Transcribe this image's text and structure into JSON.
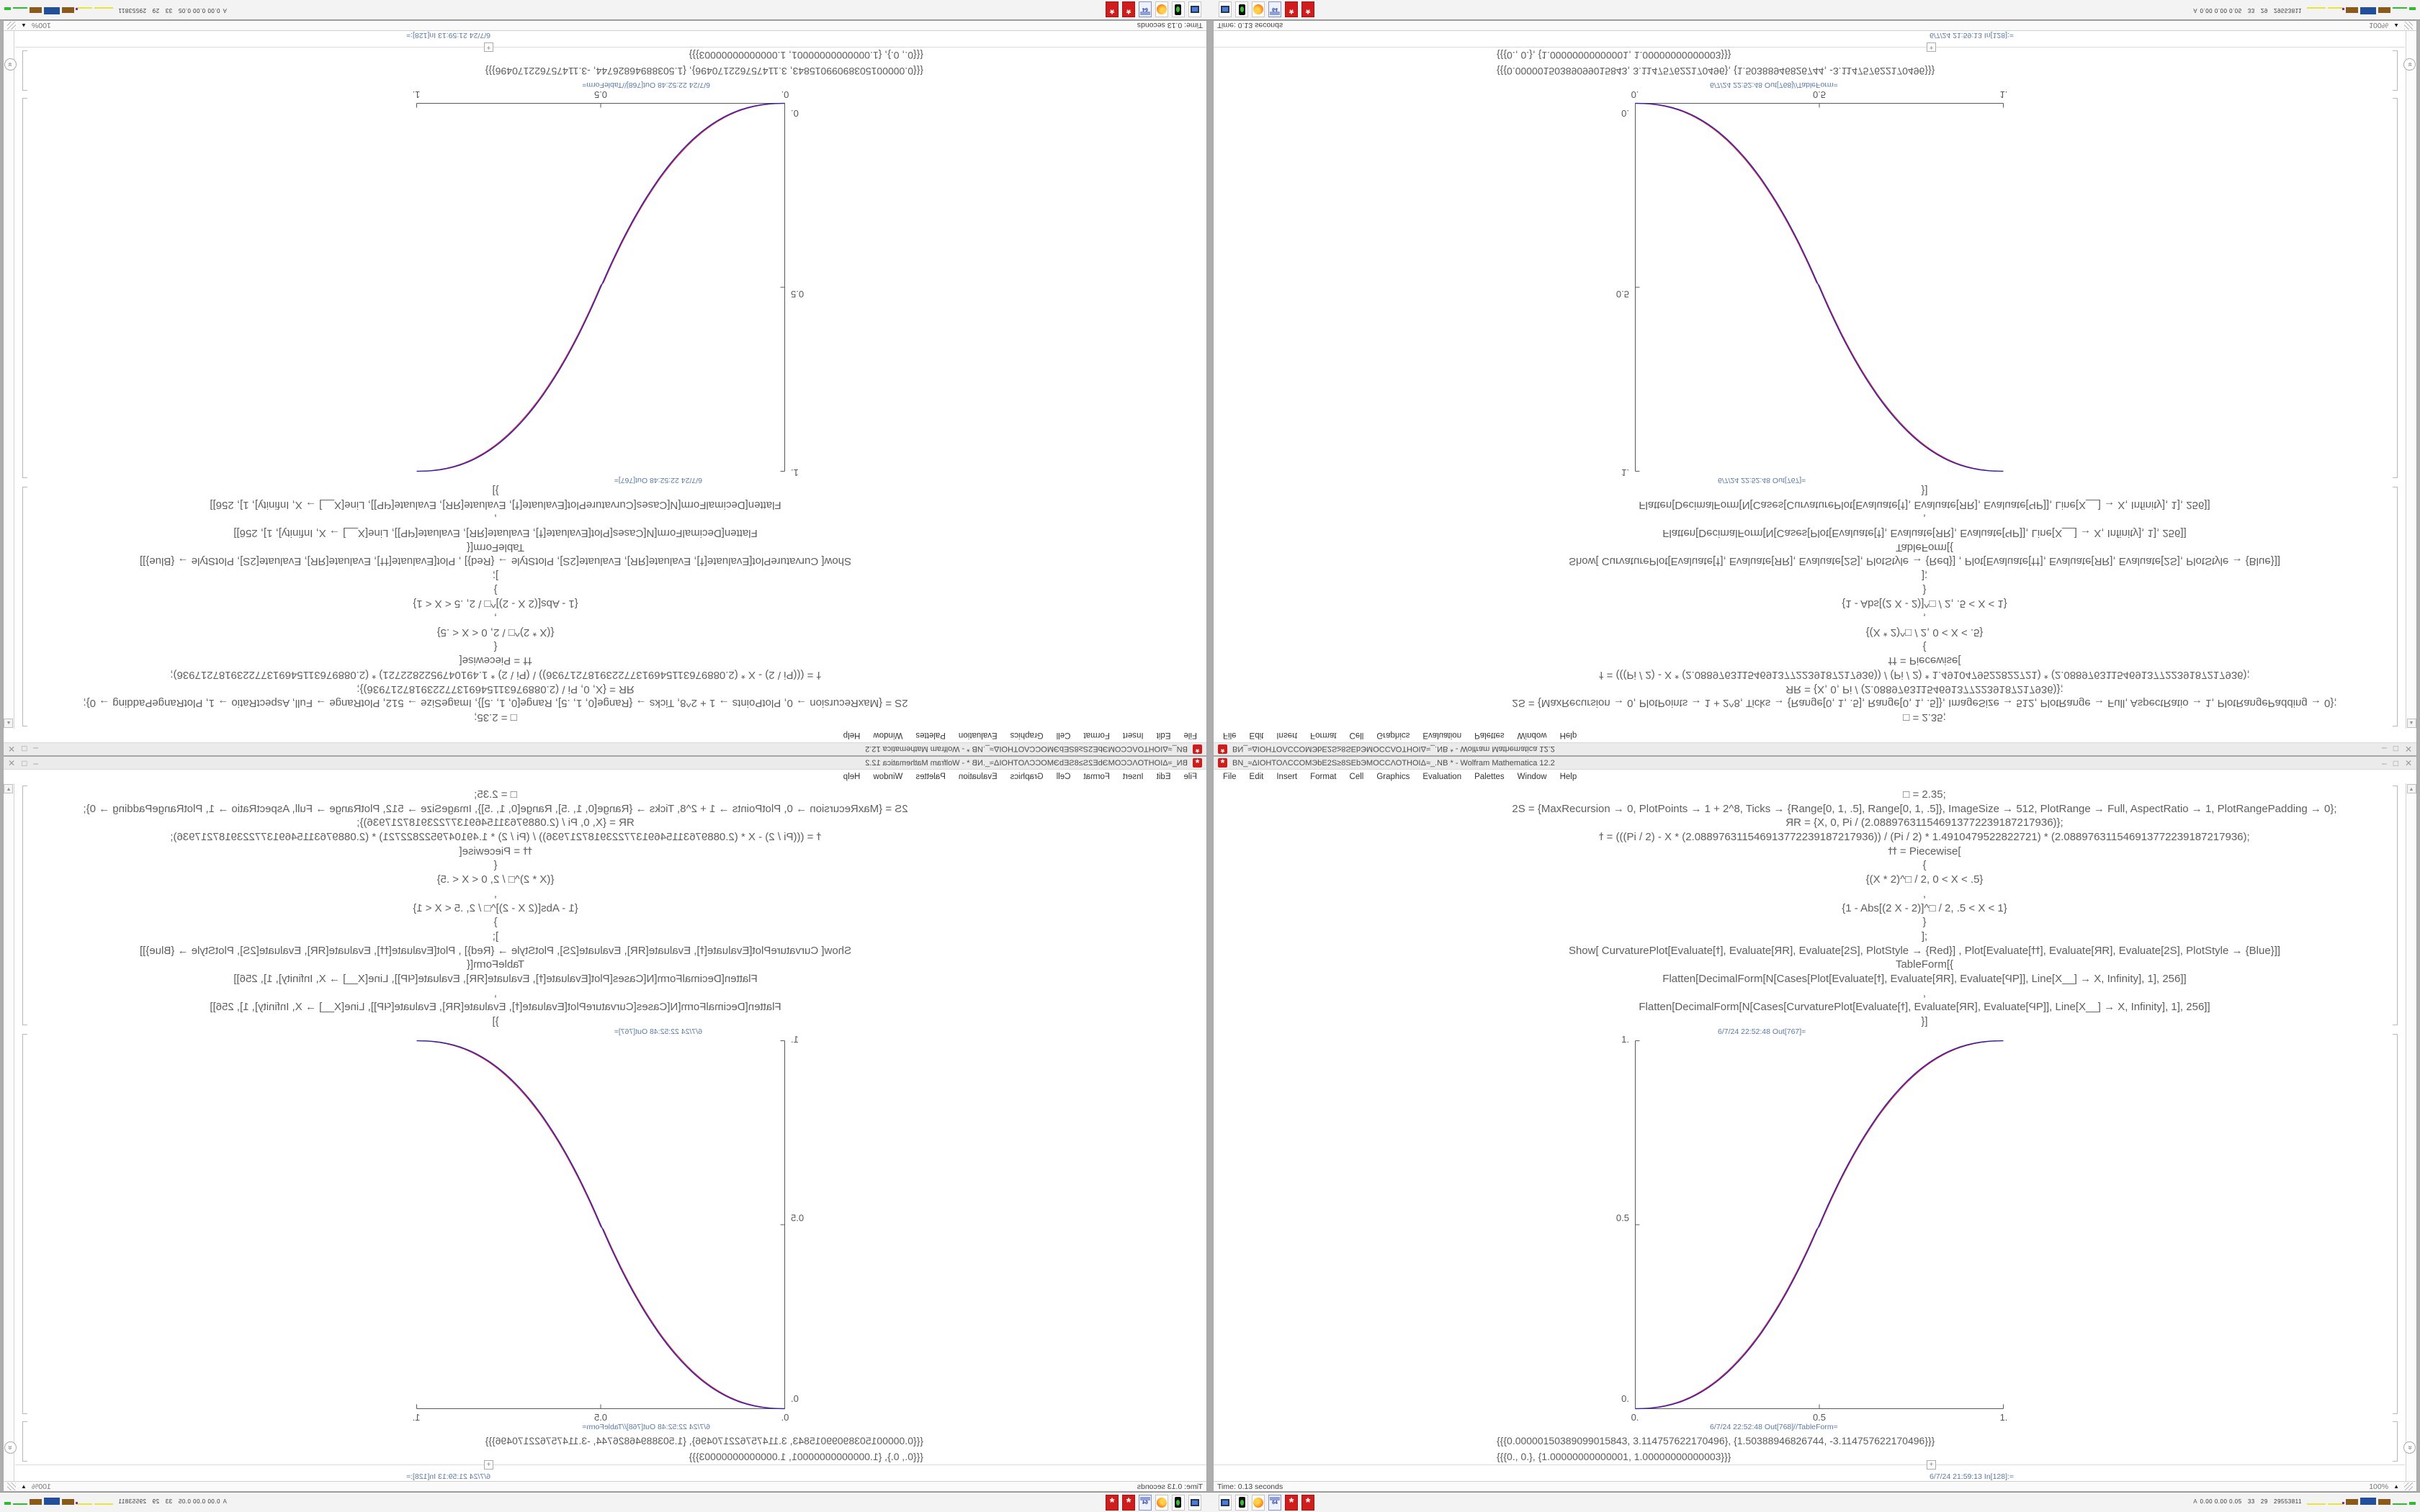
{
  "window": {
    "title": "BN_≈ΔIOHTOΛCCOMЭbЕ2S≥8SЕbЭMOCCΛΟΤΗΟIΔ≈_.NB * - Wolfram Mathematica 12.2",
    "controls": {
      "minimize": "–",
      "maximize": "□",
      "close": "✕"
    },
    "menu": [
      "File",
      "Edit",
      "Insert",
      "Format",
      "Cell",
      "Graphics",
      "Evaluation",
      "Palettes",
      "Window",
      "Help"
    ],
    "code_lines": [
      "□ = 2.35;",
      "2S = {MaxRecursion → 0, PlotPoints → 1 + 2^8, Ticks → {Range[0, 1, .5], Range[0, 1, .5]}, ImageSize → 512, PlotRange → Full, AspectRatio → 1, PlotRangePadding → 0};",
      "ЯR = {X, 0, Pi / (2.088976311546913772239187217936)};",
      "ϯ = (((Pi / 2) - X * (2.088976311546913772239187217936)) / (Pi / 2) * 1.4910479522822721) * (2.088976311546913772239187217936);",
      "ϯϯ = Piecewise[",
      "{",
      "{(X * 2)^□ / 2, 0 < X < .5}",
      ",",
      "{1 - Abs[(2 X - 2)]^□ / 2, .5 < X < 1}",
      "}",
      "];",
      "Show[  CurvaturePlot[Evaluate[ϯ], Evaluate[ЯR], Evaluate[2S], PlotStyle → {Red}]  ,  Plot[Evaluate[ϯϯ], Evaluate[ЯR], Evaluate[2S], PlotStyle → {Blue}]]",
      "TableForm[{",
      "Flatten[DecimalForm[N[Cases[Plot[Evaluate[ϯ], Evaluate[ЯR], Evaluate[ϤP]], Line[X__] → X, Infinity], 1], 256]]",
      ",",
      "Flatten[DecimalForm[N[Cases[CurvaturePlot[Evaluate[ϯ], Evaluate[ЯR], Evaluate[ϤP]], Line[X__] → X, Infinity], 1], 256]]",
      "}]"
    ],
    "out_label_plot": "6/7/24 22:52:48 Out[767]=",
    "out_label_table": "6/7/24 22:52:48 Out[768]//TableForm=",
    "table_rows": [
      "{{{0.00000150389099015843, 3.114757622170496}, {1.50388946826744, -3.114757622170496}}}",
      "{{{0., 0.}, {1.00000000000001, 1.00000000000003}}}"
    ],
    "in_label": "6/7/24 21:59:13 In[128]:=",
    "insertion_marker": "+",
    "scroll_up_glyph": "▲",
    "scroll_jump_glyph": "»",
    "status_time": "Time: 0.13 seconds",
    "status_zoom": "100%",
    "status_zoom_caret": "▲"
  },
  "taskbar": {
    "stats_prefix": "A",
    "stats": "0.00 0.00 0.05   33   29   29553811",
    "icons": [
      {
        "name": "display-settings-icon"
      },
      {
        "name": "xscreensaver-lamp-icon"
      },
      {
        "name": "firefox-icon"
      },
      {
        "name": "c64-floppy-icon",
        "label": "64"
      },
      {
        "name": "mathematica-spikey-icon"
      },
      {
        "name": "mathematica-spikey-icon-2"
      }
    ]
  },
  "chart_data": {
    "type": "line",
    "title": "Out[767]= Show of CurvaturePlot (red) and Plot (blue), overlapping smoothstep S-curves",
    "xlabel": "",
    "ylabel": "",
    "xlim": [
      0,
      1
    ],
    "ylim": [
      0,
      1
    ],
    "aspect_ratio": 1,
    "image_size": 512,
    "grid": false,
    "legend": false,
    "x_tick_labels": [
      "0.",
      "0.5",
      "1."
    ],
    "y_tick_labels": [
      "0.",
      "0.5",
      "1."
    ],
    "exponent": 2.35,
    "piecewise": "y = (2 x)^2.35 / 2 for 0 < x < .5 ;  y = 1 - Abs[2 x - 2]^2.35 / 2 for .5 < x < 1",
    "series": [
      {
        "name": "CurvaturePlot (PlotStyle Red)",
        "color": "#d42020",
        "points": [
          [
            0,
            0
          ],
          [
            0.05,
            0.0022
          ],
          [
            0.1,
            0.0114
          ],
          [
            0.15,
            0.0295
          ],
          [
            0.2,
            0.058
          ],
          [
            0.25,
            0.0981
          ],
          [
            0.3,
            0.1505
          ],
          [
            0.35,
            0.2163
          ],
          [
            0.4,
            0.296
          ],
          [
            0.45,
            0.3903
          ],
          [
            0.5,
            0.5
          ],
          [
            0.55,
            0.6097
          ],
          [
            0.6,
            0.704
          ],
          [
            0.65,
            0.7837
          ],
          [
            0.7,
            0.8495
          ],
          [
            0.75,
            0.9019
          ],
          [
            0.8,
            0.942
          ],
          [
            0.85,
            0.9705
          ],
          [
            0.9,
            0.9886
          ],
          [
            0.95,
            0.9978
          ],
          [
            1,
            1
          ]
        ]
      },
      {
        "name": "Plot (PlotStyle Blue)",
        "color": "#2323cc",
        "points": [
          [
            0,
            0
          ],
          [
            0.05,
            0.0022
          ],
          [
            0.1,
            0.0114
          ],
          [
            0.15,
            0.0295
          ],
          [
            0.2,
            0.058
          ],
          [
            0.25,
            0.0981
          ],
          [
            0.3,
            0.1505
          ],
          [
            0.35,
            0.2163
          ],
          [
            0.4,
            0.296
          ],
          [
            0.45,
            0.3903
          ],
          [
            0.5,
            0.5
          ],
          [
            0.55,
            0.6097
          ],
          [
            0.6,
            0.704
          ],
          [
            0.65,
            0.7837
          ],
          [
            0.7,
            0.8495
          ],
          [
            0.75,
            0.9019
          ],
          [
            0.8,
            0.942
          ],
          [
            0.85,
            0.9705
          ],
          [
            0.9,
            0.9886
          ],
          [
            0.95,
            0.9978
          ],
          [
            1,
            1
          ]
        ]
      }
    ]
  },
  "colors": {
    "accent_red": "#d42020",
    "accent_blue": "#2323cc",
    "cell_label": "#5b79a3",
    "code_text": "#5e5e5e",
    "axis": "#5a5a5a",
    "titlebar_bg": "#ebebeb",
    "taskbar_bg": "#f3f3f3",
    "window_border": "#a8a8a8",
    "desktop_bg": "#aeaeae"
  }
}
